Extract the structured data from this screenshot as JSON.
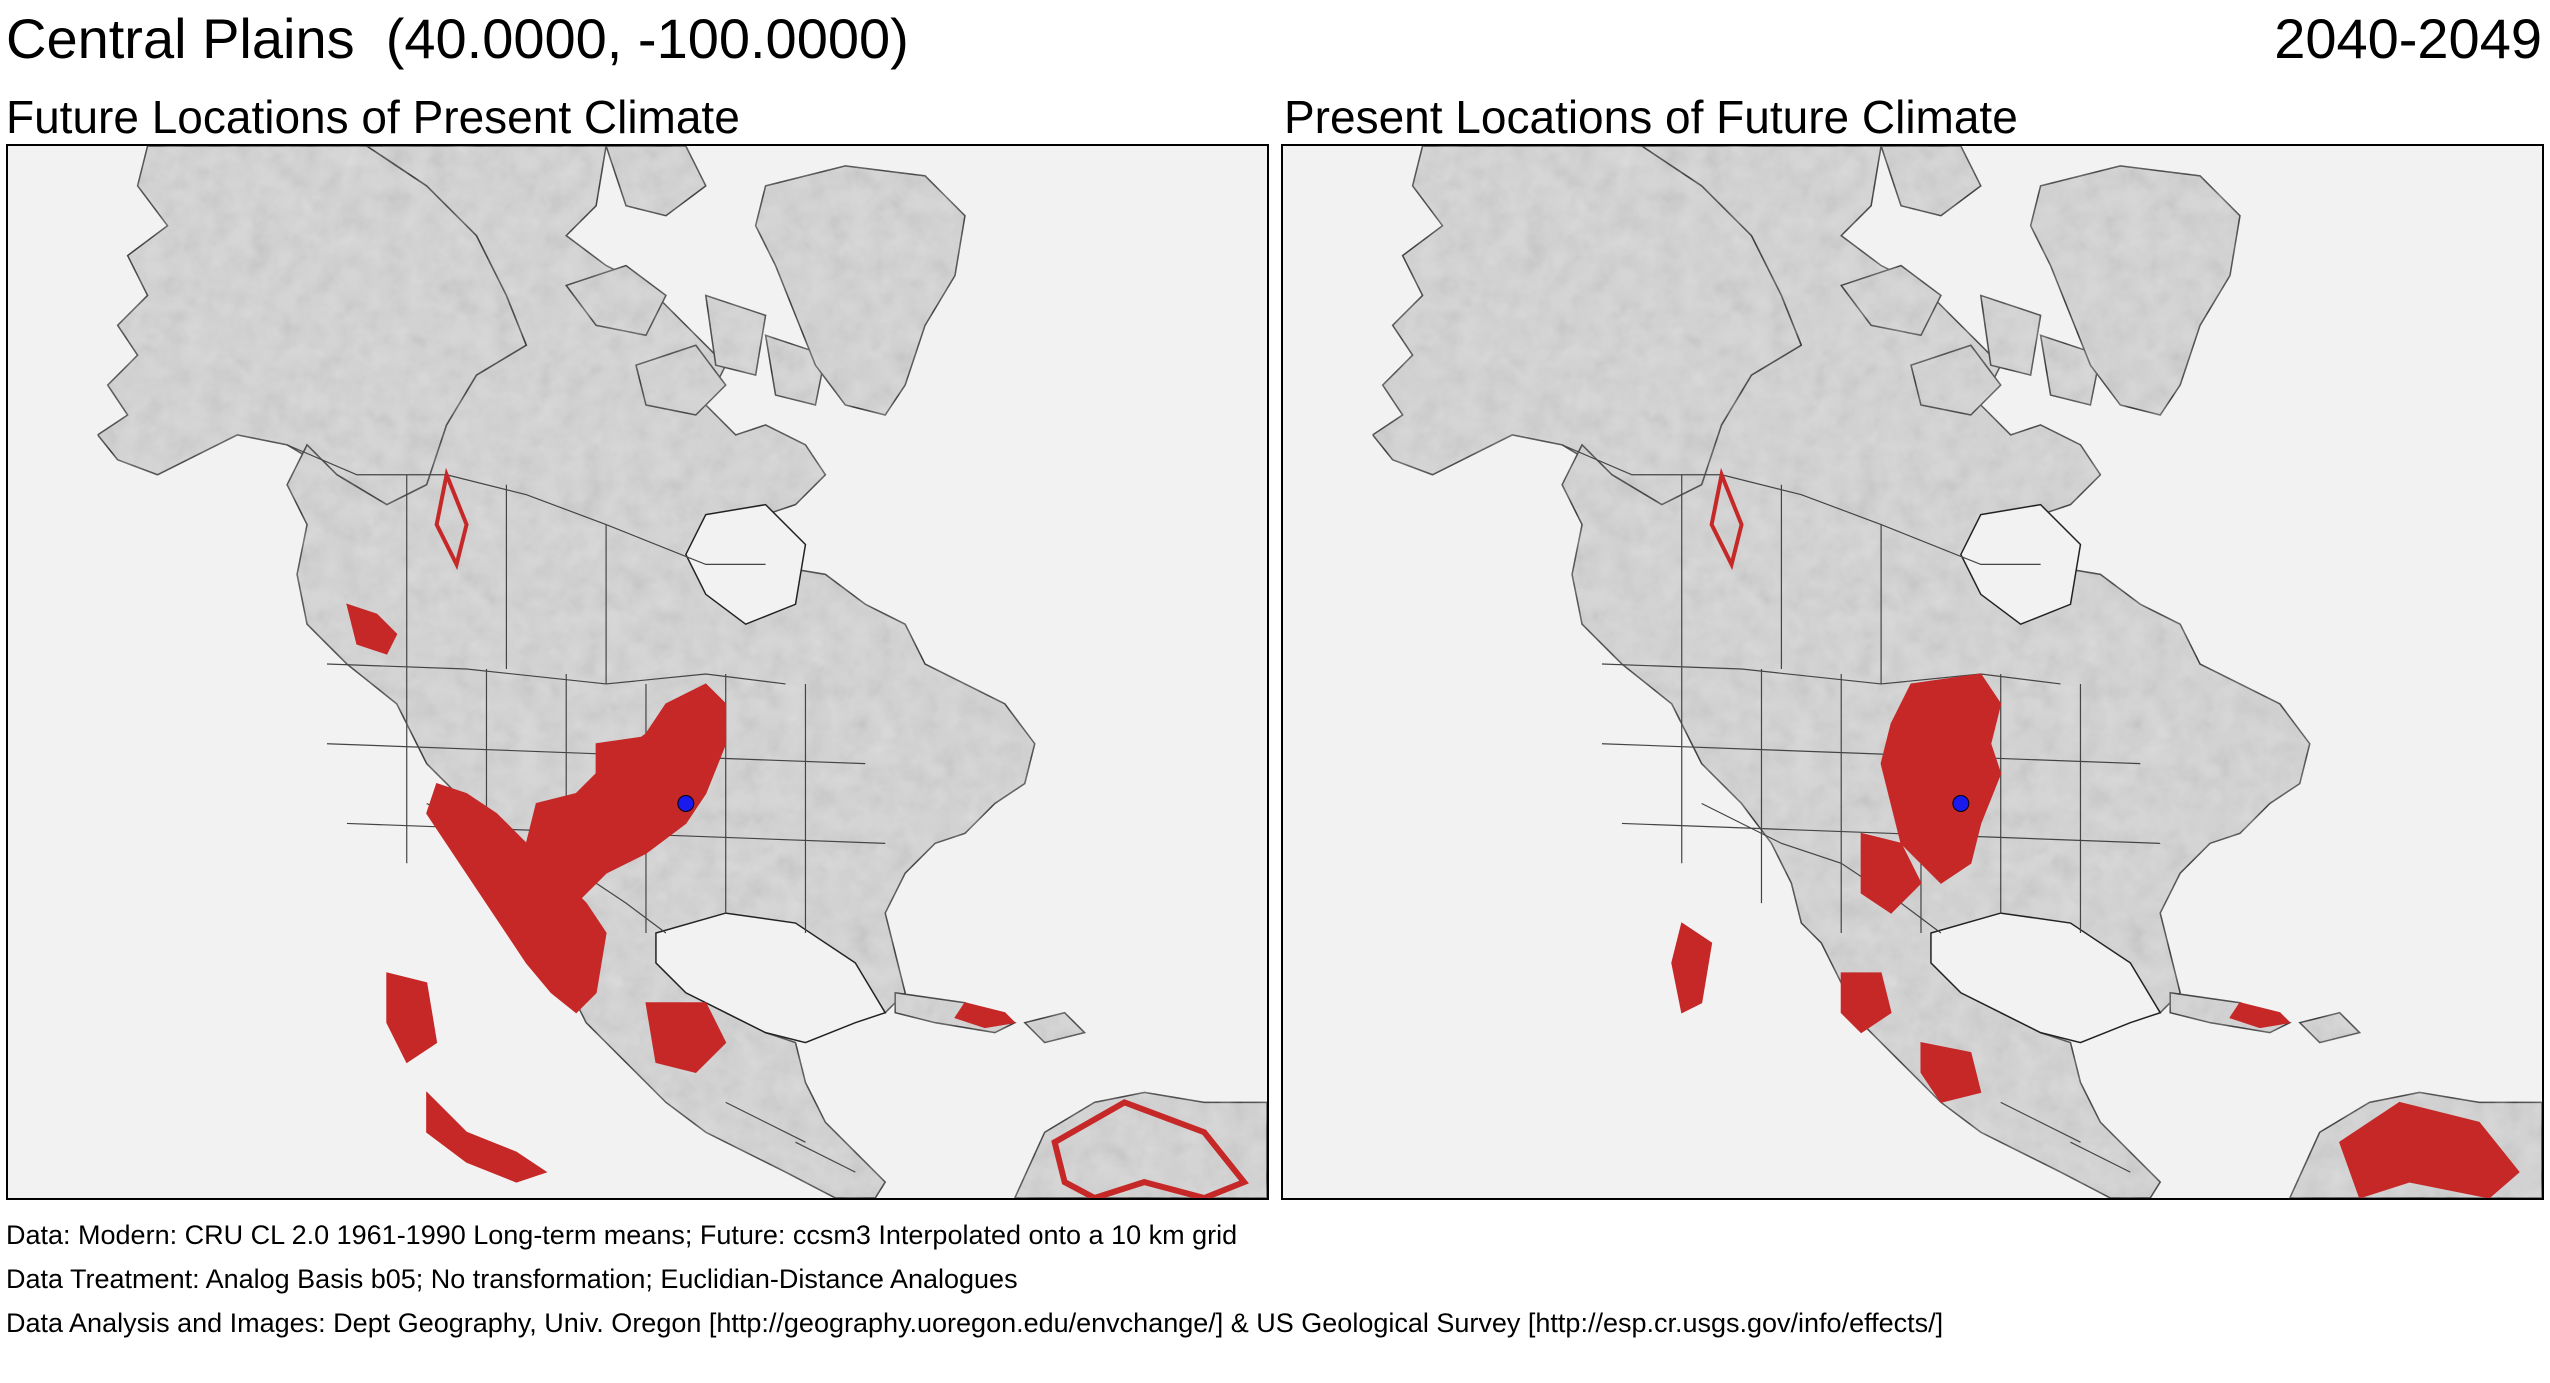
{
  "header": {
    "title": "Central Plains  (40.0000, -100.0000)",
    "period": "2040-2049"
  },
  "panels": [
    {
      "title": "Future Locations of Present Climate"
    },
    {
      "title": "Present Locations of Future Climate"
    }
  ],
  "footer": {
    "data": "Data:  Modern: CRU CL 2.0 1961-1990 Long-term means; Future: ccsm3 Interpolated onto a 10 km grid",
    "treatment": "Data Treatment:  Analog Basis b05; No transformation; Euclidian-Distance Analogues",
    "analysis": "Data Analysis and Images:  Dept Geography, Univ. Oregon [http://geography.uoregon.edu/envchange/] & US Geological Survey [http://esp.cr.usgs.gov/info/effects/]"
  },
  "colors": {
    "land": "#d6d6d6",
    "water": "#f2f2f2",
    "analog": "#c62828",
    "point": "#1a1aee",
    "border": "#333333"
  }
}
